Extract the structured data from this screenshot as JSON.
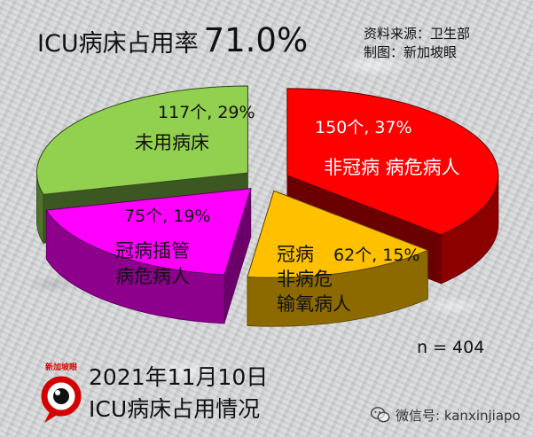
{
  "header": {
    "title": "ICU病床占用率",
    "title_pct": "71.0%",
    "source": "资料来源：卫生部",
    "made_by": "制图：新加坡眼"
  },
  "chart_data": {
    "type": "pie",
    "title": "ICU病床占用率 71.0%",
    "n_label": "n = 404",
    "slices": [
      {
        "label": "非冠病 病危病人",
        "count": 150,
        "percent": 37,
        "value_text": "150个, 37%",
        "color": "#ff0000",
        "text_color": "#ffffff"
      },
      {
        "label": "冠病 非病危 输氧病人",
        "count": 62,
        "percent": 15,
        "value_text": "62个, 15%",
        "color": "#ffc000",
        "text_color": "#111111"
      },
      {
        "label": "冠病插管 病危病人",
        "count": 75,
        "percent": 19,
        "value_text": "75个, 19%",
        "color": "#ff00ff",
        "text_color": "#111111"
      },
      {
        "label": "未用病床",
        "count": 117,
        "percent": 29,
        "value_text": "117个, 29%",
        "color": "#92d050",
        "text_color": "#111111"
      }
    ]
  },
  "footer": {
    "date": "2021年11月10日",
    "subtitle": "ICU病床占用情况",
    "logo_text": "新加坡眼",
    "watermark": "微信号: kanxinjiapo"
  },
  "colors": {
    "red": "#ff0000",
    "orange": "#ffc000",
    "magenta": "#ff00ff",
    "green": "#92d050",
    "logo_red": "#d40000"
  }
}
